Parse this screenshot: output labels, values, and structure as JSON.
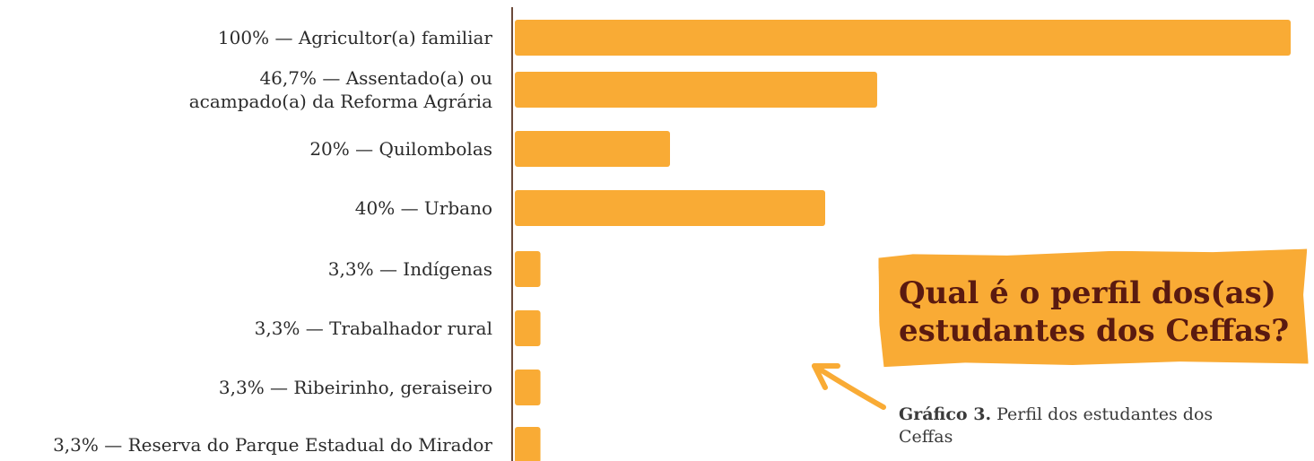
{
  "title_box": {
    "line1": "Qual é o perfil dos(as)",
    "line2": "estudantes dos Ceffas?"
  },
  "caption": {
    "label": "Gráfico 3.",
    "text": "Perfil dos estudantes dos Ceffas"
  },
  "colors": {
    "bar": "#f9ab35",
    "axis": "#6b4a3a",
    "title_text": "#5a1a10"
  },
  "chart_data": {
    "type": "bar",
    "orientation": "horizontal",
    "categories": [
      [
        "100% — Agricultor(a) familiar"
      ],
      [
        "46,7% — Assentado(a) ou",
        "acampado(a) da Reforma Agrária"
      ],
      [
        "20% — Quilombolas"
      ],
      [
        "40% — Urbano"
      ],
      [
        "3,3% — Indígenas"
      ],
      [
        "3,3% — Trabalhador rural"
      ],
      [
        "3,3% — Ribeirinho, geraiseiro"
      ],
      [
        "3,3% — Reserva do Parque Estadual do Mirador"
      ]
    ],
    "values": [
      100,
      46.7,
      20,
      40,
      3.3,
      3.3,
      3.3,
      3.3
    ],
    "unit": "%",
    "xlim": [
      0,
      100
    ]
  }
}
